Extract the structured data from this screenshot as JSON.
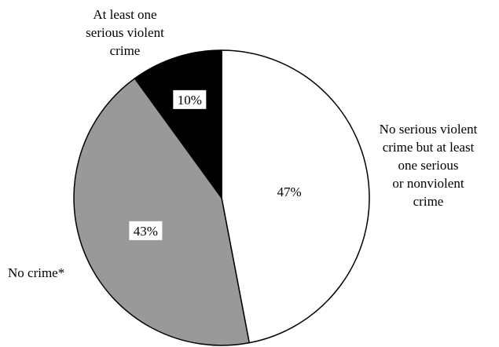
{
  "chart_data": {
    "type": "pie",
    "title": "",
    "start_angle_deg": 0,
    "direction": "clockwise",
    "slices": [
      {
        "label_lines": [
          "No serious violent",
          "crime but at least",
          "one serious",
          "or nonviolent",
          "crime"
        ],
        "value": 47,
        "value_label": "47%",
        "color": "#ffffff",
        "value_boxed": false
      },
      {
        "label_lines": [
          "No crime*"
        ],
        "value": 43,
        "value_label": "43%",
        "color": "#999999",
        "value_boxed": true
      },
      {
        "label_lines": [
          "At least one",
          "serious violent",
          "crime"
        ],
        "value": 10,
        "value_label": "10%",
        "color": "#000000",
        "value_boxed": true
      }
    ]
  }
}
